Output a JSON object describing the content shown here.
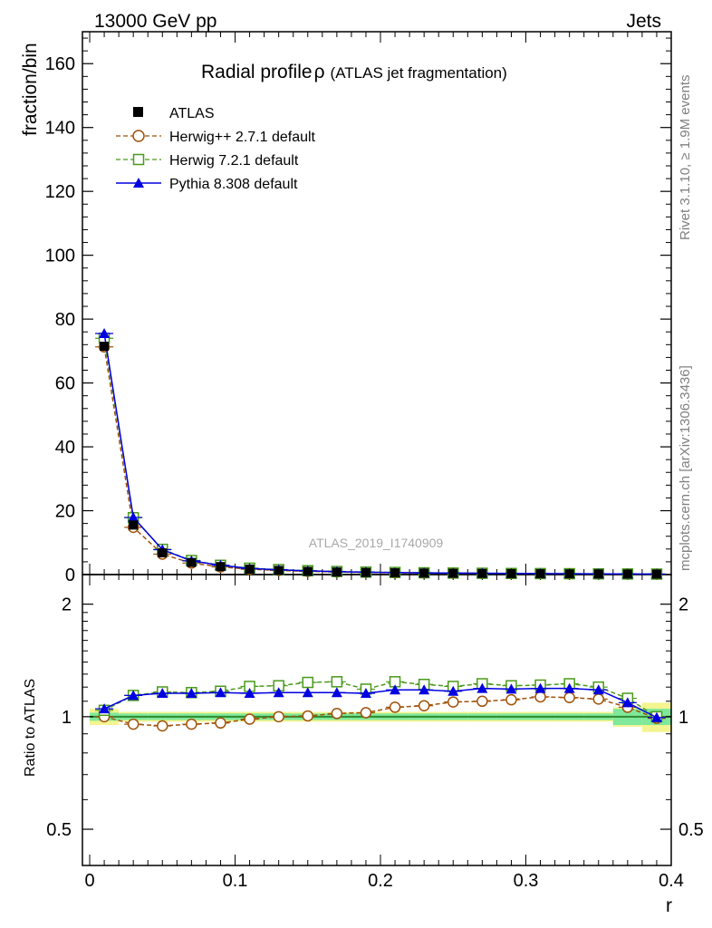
{
  "header": {
    "left": "13000 GeV pp",
    "right": "Jets"
  },
  "side_labels": {
    "rivet": "Rivet 3.1.10, ≥ 1.9M events",
    "mcplots": "mcplots.cern.ch [arXiv:1306.3436]"
  },
  "watermark": "ATLAS_2019_I1740909",
  "colors": {
    "atlas": "#000000",
    "herwigpp": "#a0520a",
    "herwig7": "#4a9a1a",
    "pythia": "#0000e0",
    "band_inner": "#7fe89a",
    "band_outer": "#f4f490"
  },
  "chart_data": [
    {
      "type": "line",
      "title_main": "Radial profile",
      "title_symbol": "ρ",
      "title_sub": "(ATLAS jet fragmentation)",
      "ylabel": "fraction/bin",
      "ylim": [
        0,
        170
      ],
      "yticks": [
        0,
        20,
        40,
        60,
        80,
        100,
        120,
        140,
        160
      ],
      "ytick_labels": [
        "0",
        "20",
        "40",
        "60",
        "80",
        "100",
        "120",
        "140",
        "160"
      ],
      "xlim": [
        -0.005,
        0.4
      ],
      "x": [
        0.01,
        0.03,
        0.05,
        0.07,
        0.09,
        0.11,
        0.13,
        0.15,
        0.17,
        0.19,
        0.21,
        0.23,
        0.25,
        0.27,
        0.29,
        0.31,
        0.33,
        0.35,
        0.37,
        0.39
      ],
      "legend": [
        "ATLAS",
        "Herwig++ 2.7.1 default",
        "Herwig 7.2.1 default",
        "Pythia 8.308 default"
      ],
      "series": [
        {
          "name": "ATLAS",
          "values": [
            71.5,
            15.5,
            6.8,
            3.8,
            2.5,
            1.7,
            1.3,
            1.0,
            0.8,
            0.65,
            0.55,
            0.47,
            0.4,
            0.35,
            0.3,
            0.26,
            0.23,
            0.2,
            0.17,
            0.15
          ]
        },
        {
          "name": "Herwig++ 2.7.1 default",
          "values": [
            71.3,
            14.8,
            6.4,
            3.6,
            2.4,
            1.66,
            1.3,
            1.0,
            0.82,
            0.67,
            0.58,
            0.5,
            0.44,
            0.38,
            0.33,
            0.29,
            0.26,
            0.22,
            0.18,
            0.15
          ]
        },
        {
          "name": "Herwig 7.2.1 default",
          "values": [
            74.0,
            17.8,
            7.9,
            4.4,
            2.9,
            2.0,
            1.55,
            1.2,
            0.97,
            0.76,
            0.66,
            0.56,
            0.47,
            0.41,
            0.35,
            0.31,
            0.27,
            0.23,
            0.18,
            0.15
          ]
        },
        {
          "name": "Pythia 8.308 default",
          "values": [
            75.5,
            17.9,
            7.8,
            4.3,
            2.9,
            1.9,
            1.5,
            1.16,
            0.92,
            0.74,
            0.63,
            0.54,
            0.46,
            0.41,
            0.35,
            0.3,
            0.27,
            0.23,
            0.18,
            0.15
          ]
        }
      ]
    },
    {
      "type": "line",
      "ylabel": "Ratio to ATLAS",
      "xlabel": "r",
      "scale": "log",
      "ylim": [
        0.4,
        2.4
      ],
      "yticks": [
        0.5,
        1,
        2
      ],
      "ytick_labels": [
        "0.5",
        "1",
        "2"
      ],
      "xlim": [
        -0.005,
        0.4
      ],
      "xticks": [
        0,
        0.1,
        0.2,
        0.3,
        0.4
      ],
      "xtick_labels": [
        "0",
        "0.1",
        "0.2",
        "0.3",
        "0.4"
      ],
      "x": [
        0.01,
        0.03,
        0.05,
        0.07,
        0.09,
        0.11,
        0.13,
        0.15,
        0.17,
        0.19,
        0.21,
        0.23,
        0.25,
        0.27,
        0.29,
        0.31,
        0.33,
        0.35,
        0.37,
        0.39
      ],
      "band_inner": [
        0.025,
        0.02,
        0.02,
        0.02,
        0.02,
        0.02,
        0.02,
        0.02,
        0.02,
        0.02,
        0.02,
        0.02,
        0.02,
        0.02,
        0.02,
        0.02,
        0.02,
        0.02,
        0.05,
        0.05
      ],
      "band_outer": [
        0.05,
        0.03,
        0.03,
        0.03,
        0.03,
        0.03,
        0.03,
        0.03,
        0.03,
        0.03,
        0.03,
        0.03,
        0.03,
        0.03,
        0.03,
        0.03,
        0.03,
        0.03,
        0.06,
        0.09
      ],
      "series": [
        {
          "name": "Herwig++ 2.7.1 default",
          "values": [
            1.0,
            0.955,
            0.945,
            0.955,
            0.962,
            0.985,
            1.0,
            1.005,
            1.02,
            1.025,
            1.06,
            1.07,
            1.095,
            1.1,
            1.11,
            1.13,
            1.125,
            1.115,
            1.06,
            0.99
          ]
        },
        {
          "name": "Herwig 7.2.1 default",
          "values": [
            1.04,
            1.14,
            1.165,
            1.16,
            1.17,
            1.205,
            1.21,
            1.235,
            1.24,
            1.185,
            1.24,
            1.22,
            1.205,
            1.225,
            1.21,
            1.215,
            1.225,
            1.2,
            1.12,
            1.0
          ]
        },
        {
          "name": "Pythia 8.308 default",
          "values": [
            1.05,
            1.14,
            1.155,
            1.155,
            1.16,
            1.155,
            1.16,
            1.16,
            1.16,
            1.155,
            1.18,
            1.18,
            1.17,
            1.19,
            1.185,
            1.19,
            1.19,
            1.18,
            1.09,
            0.995
          ]
        }
      ]
    }
  ]
}
